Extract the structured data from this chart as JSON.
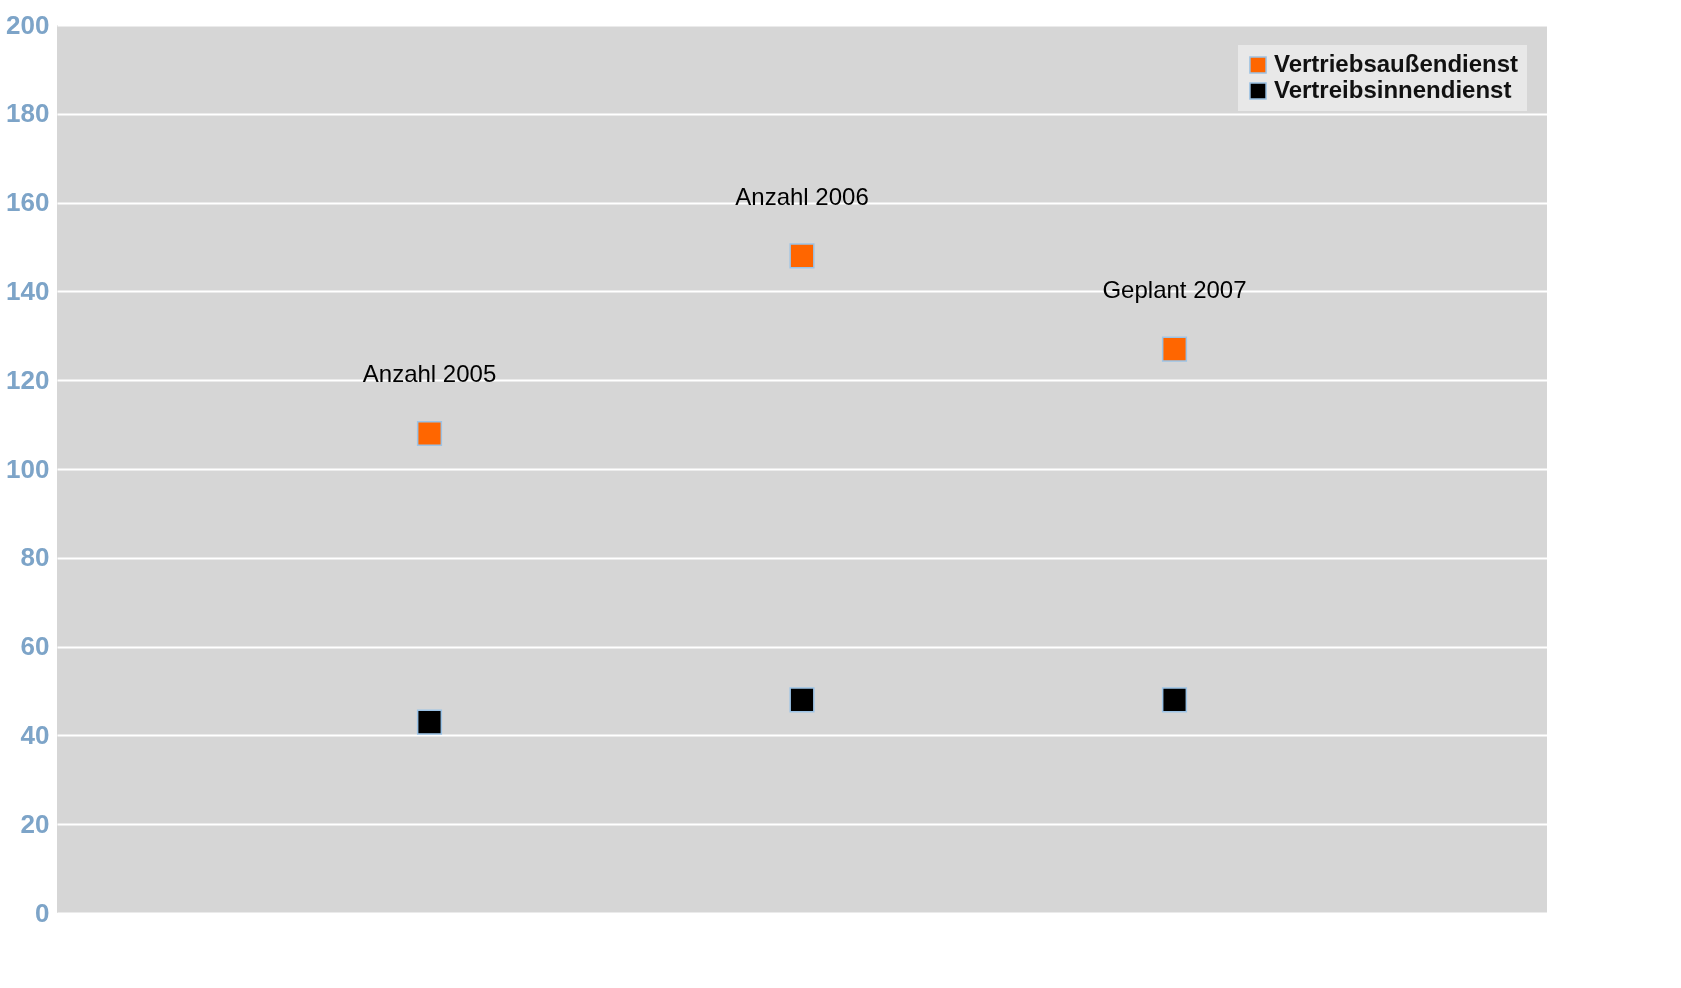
{
  "chart_data": {
    "type": "scatter",
    "categories": [
      "Anzahl 2005",
      "Anzahl 2006",
      "Geplant 2007"
    ],
    "series": [
      {
        "name": "Vertriebsaußendienst",
        "color": "#ff6600",
        "values": [
          108,
          148,
          127
        ]
      },
      {
        "name": "Vertreibsinnendienst",
        "color": "#000000",
        "values": [
          43,
          48,
          48
        ]
      }
    ],
    "ylim": [
      0,
      200
    ],
    "yticks": [
      0,
      20,
      40,
      60,
      80,
      100,
      120,
      140,
      160,
      180,
      200
    ],
    "grid": "y",
    "legend": "top right",
    "marker": "square",
    "tick_labels": "y"
  }
}
